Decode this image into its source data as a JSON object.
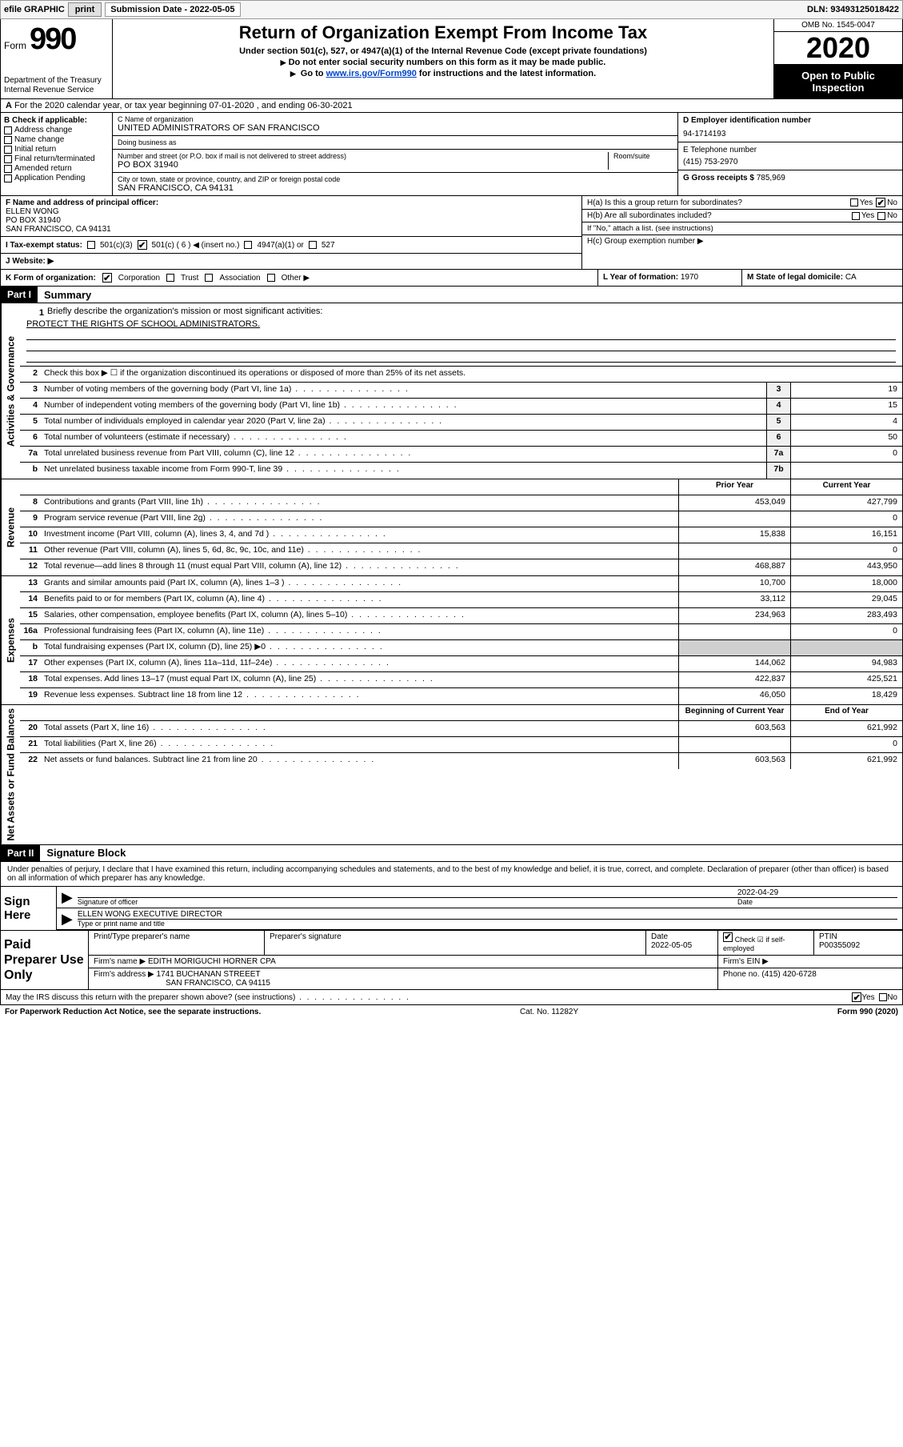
{
  "topbar": {
    "efile": "efile GRAPHIC",
    "print": "print",
    "sub_label": "Submission Date - 2022-05-05",
    "dln": "DLN: 93493125018422"
  },
  "header": {
    "form_text": "Form",
    "form_num": "990",
    "dept": "Department of the Treasury Internal Revenue Service",
    "title": "Return of Organization Exempt From Income Tax",
    "sub1": "Under section 501(c), 527, or 4947(a)(1) of the Internal Revenue Code (except private foundations)",
    "sub2": "Do not enter social security numbers on this form as it may be made public.",
    "sub3_pre": "Go to ",
    "sub3_link": "www.irs.gov/Form990",
    "sub3_post": " for instructions and the latest information.",
    "omb": "OMB No. 1545-0047",
    "year": "2020",
    "open_pub": "Open to Public Inspection"
  },
  "section_a": {
    "text": "For the 2020 calendar year, or tax year beginning 07-01-2020   , and ending 06-30-2021"
  },
  "col_b": {
    "hdr": "B Check if applicable:",
    "items": [
      "Address change",
      "Name change",
      "Initial return",
      "Final return/terminated",
      "Amended return",
      "Application Pending"
    ]
  },
  "col_c": {
    "name_label": "C Name of organization",
    "name": "UNITED ADMINISTRATORS OF SAN FRANCISCO",
    "dba_label": "Doing business as",
    "dba": "",
    "addr_label": "Number and street (or P.O. box if mail is not delivered to street address)",
    "room_label": "Room/suite",
    "addr": "PO BOX 31940",
    "city_label": "City or town, state or province, country, and ZIP or foreign postal code",
    "city": "SAN FRANCISCO, CA  94131"
  },
  "col_d": {
    "ein_label": "D Employer identification number",
    "ein": "94-1714193",
    "tel_label": "E Telephone number",
    "tel": "(415) 753-2970",
    "gross_label": "G Gross receipts $",
    "gross": "785,969"
  },
  "lower": {
    "f_label": "F  Name and address of principal officer:",
    "f_name": "ELLEN WONG",
    "f_addr1": "PO BOX 31940",
    "f_addr2": "SAN FRANCISCO, CA  94131",
    "i_label": "I  Tax-exempt status:",
    "i_501c3": "501(c)(3)",
    "i_501c": "501(c) ( 6 ) ◀ (insert no.)",
    "i_4947": "4947(a)(1) or",
    "i_527": "527",
    "j_label": "J  Website: ▶",
    "h_a": "H(a)  Is this a group return for subordinates?",
    "h_b": "H(b)  Are all subordinates included?",
    "h_b_note": "If \"No,\" attach a list. (see instructions)",
    "h_c": "H(c)  Group exemption number ▶",
    "yes": "Yes",
    "no": "No"
  },
  "k_row": {
    "k_label": "K Form of organization:",
    "k_corp": "Corporation",
    "k_trust": "Trust",
    "k_assoc": "Association",
    "k_other": "Other ▶",
    "l_label": "L Year of formation:",
    "l_val": "1970",
    "m_label": "M State of legal domicile:",
    "m_val": "CA"
  },
  "part1": {
    "hdr": "Part I",
    "title": "Summary"
  },
  "vert_labels": {
    "gov": "Activities & Governance",
    "rev": "Revenue",
    "exp": "Expenses",
    "net": "Net Assets or Fund Balances"
  },
  "gov_rows": {
    "r1_num": "1",
    "r1": "Briefly describe the organization's mission or most significant activities:",
    "r1_mission": "PROTECT THE RIGHTS OF SCHOOL ADMINISTRATORS.",
    "r2_num": "2",
    "r2": "Check this box ▶ ☐ if the organization discontinued its operations or disposed of more than 25% of its net assets.",
    "r3_num": "3",
    "r3": "Number of voting members of the governing body (Part VI, line 1a)",
    "r3_box": "3",
    "r3_val": "19",
    "r4_num": "4",
    "r4": "Number of independent voting members of the governing body (Part VI, line 1b)",
    "r4_box": "4",
    "r4_val": "15",
    "r5_num": "5",
    "r5": "Total number of individuals employed in calendar year 2020 (Part V, line 2a)",
    "r5_box": "5",
    "r5_val": "4",
    "r6_num": "6",
    "r6": "Total number of volunteers (estimate if necessary)",
    "r6_box": "6",
    "r6_val": "50",
    "r7a_num": "7a",
    "r7a": "Total unrelated business revenue from Part VIII, column (C), line 12",
    "r7a_box": "7a",
    "r7a_val": "0",
    "r7b_num": "b",
    "r7b": "Net unrelated business taxable income from Form 990-T, line 39",
    "r7b_box": "7b",
    "r7b_val": ""
  },
  "col_hdrs": {
    "prior": "Prior Year",
    "current": "Current Year",
    "begin": "Beginning of Current Year",
    "end": "End of Year"
  },
  "rev_rows": [
    {
      "num": "8",
      "text": "Contributions and grants (Part VIII, line 1h)",
      "prior": "453,049",
      "curr": "427,799"
    },
    {
      "num": "9",
      "text": "Program service revenue (Part VIII, line 2g)",
      "prior": "",
      "curr": "0"
    },
    {
      "num": "10",
      "text": "Investment income (Part VIII, column (A), lines 3, 4, and 7d )",
      "prior": "15,838",
      "curr": "16,151"
    },
    {
      "num": "11",
      "text": "Other revenue (Part VIII, column (A), lines 5, 6d, 8c, 9c, 10c, and 11e)",
      "prior": "",
      "curr": "0"
    },
    {
      "num": "12",
      "text": "Total revenue—add lines 8 through 11 (must equal Part VIII, column (A), line 12)",
      "prior": "468,887",
      "curr": "443,950"
    }
  ],
  "exp_rows": [
    {
      "num": "13",
      "text": "Grants and similar amounts paid (Part IX, column (A), lines 1–3 )",
      "prior": "10,700",
      "curr": "18,000"
    },
    {
      "num": "14",
      "text": "Benefits paid to or for members (Part IX, column (A), line 4)",
      "prior": "33,112",
      "curr": "29,045"
    },
    {
      "num": "15",
      "text": "Salaries, other compensation, employee benefits (Part IX, column (A), lines 5–10)",
      "prior": "234,963",
      "curr": "283,493"
    },
    {
      "num": "16a",
      "text": "Professional fundraising fees (Part IX, column (A), line 11e)",
      "prior": "",
      "curr": "0"
    },
    {
      "num": "b",
      "text": "Total fundraising expenses (Part IX, column (D), line 25) ▶0",
      "prior": "SHADE",
      "curr": "SHADE"
    },
    {
      "num": "17",
      "text": "Other expenses (Part IX, column (A), lines 11a–11d, 11f–24e)",
      "prior": "144,062",
      "curr": "94,983"
    },
    {
      "num": "18",
      "text": "Total expenses. Add lines 13–17 (must equal Part IX, column (A), line 25)",
      "prior": "422,837",
      "curr": "425,521"
    },
    {
      "num": "19",
      "text": "Revenue less expenses. Subtract line 18 from line 12",
      "prior": "46,050",
      "curr": "18,429"
    }
  ],
  "net_rows": [
    {
      "num": "20",
      "text": "Total assets (Part X, line 16)",
      "prior": "603,563",
      "curr": "621,992"
    },
    {
      "num": "21",
      "text": "Total liabilities (Part X, line 26)",
      "prior": "",
      "curr": "0"
    },
    {
      "num": "22",
      "text": "Net assets or fund balances. Subtract line 21 from line 20",
      "prior": "603,563",
      "curr": "621,992"
    }
  ],
  "part2": {
    "hdr": "Part II",
    "title": "Signature Block"
  },
  "sig": {
    "intro": "Under penalties of perjury, I declare that I have examined this return, including accompanying schedules and statements, and to the best of my knowledge and belief, it is true, correct, and complete. Declaration of preparer (other than officer) is based on all information of which preparer has any knowledge.",
    "sign_here": "Sign Here",
    "sig_officer": "Signature of officer",
    "date": "2022-04-29",
    "date_label": "Date",
    "name": "ELLEN WONG  EXECUTIVE DIRECTOR",
    "name_label": "Type or print name and title"
  },
  "prep": {
    "label": "Paid Preparer Use Only",
    "print_name_label": "Print/Type preparer's name",
    "print_name": "",
    "sig_label": "Preparer's signature",
    "date_label": "Date",
    "date": "2022-05-05",
    "check_label": "Check ☑ if self-employed",
    "ptin_label": "PTIN",
    "ptin": "P00355092",
    "firm_name_label": "Firm's name   ▶",
    "firm_name": "EDITH MORIGUCHI HORNER CPA",
    "firm_ein_label": "Firm's EIN ▶",
    "firm_addr_label": "Firm's address ▶",
    "firm_addr1": "1741 BUCHANAN STREEET",
    "firm_addr2": "SAN FRANCISCO, CA  94115",
    "phone_label": "Phone no.",
    "phone": "(415) 420-6728"
  },
  "irs_row": {
    "text": "May the IRS discuss this return with the preparer shown above? (see instructions)",
    "yes": "Yes",
    "no": "No"
  },
  "footer": {
    "left": "For Paperwork Reduction Act Notice, see the separate instructions.",
    "mid": "Cat. No. 11282Y",
    "right": "Form 990 (2020)"
  }
}
